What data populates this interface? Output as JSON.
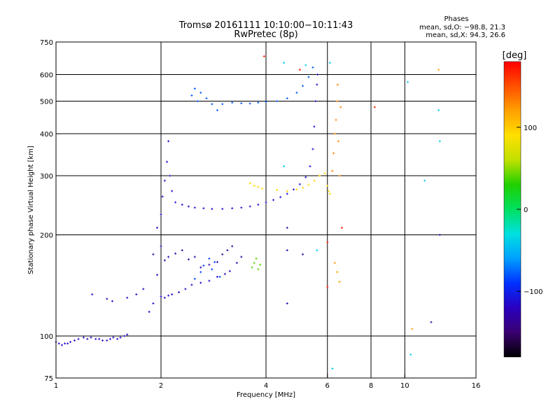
{
  "header": {
    "title_line1": "Tromsø 20161111 10:10:00−10:11:43",
    "title_line2": "RwPretec (8p)"
  },
  "stats": {
    "heading": "Phases",
    "line_o": "mean, sd,O: −98.8, 21.3",
    "line_x": "mean, sd,X:  94.3, 26.6"
  },
  "colorbar": {
    "label": "[deg]",
    "ticks": [
      {
        "value": 100,
        "label": "100"
      },
      {
        "value": 0,
        "label": "0"
      },
      {
        "value": -100,
        "label": "−100"
      }
    ],
    "range": [
      -180,
      180
    ],
    "colors": [
      "#000000",
      "#3a0070",
      "#2a00c0",
      "#0030ff",
      "#00a0ff",
      "#00e0e0",
      "#00e060",
      "#20d000",
      "#c0e000",
      "#ffe000",
      "#ffa000",
      "#ff5000",
      "#ff0000"
    ]
  },
  "chart_data": {
    "type": "scatter",
    "xlabel": "Frequency [MHz]",
    "ylabel": "Stationary phase Virtual Height [km]",
    "xscale": "log",
    "yscale": "log",
    "xlim": [
      1,
      16
    ],
    "ylim": [
      75,
      750
    ],
    "x_ticks": [
      {
        "value": 1,
        "label": "1"
      },
      {
        "value": 2,
        "label": "2"
      },
      {
        "value": 4,
        "label": "4"
      },
      {
        "value": 6,
        "label": "6"
      },
      {
        "value": 8,
        "label": "8"
      },
      {
        "value": 10,
        "label": "10"
      },
      {
        "value": 16,
        "label": "16"
      }
    ],
    "y_ticks": [
      {
        "value": 75,
        "label": "75"
      },
      {
        "value": 100,
        "label": "100"
      },
      {
        "value": 200,
        "label": "200"
      },
      {
        "value": 300,
        "label": "300"
      },
      {
        "value": 400,
        "label": "400"
      },
      {
        "value": 500,
        "label": "500"
      },
      {
        "value": 600,
        "label": "600"
      },
      {
        "value": 750,
        "label": "750"
      }
    ],
    "grid_x": [
      2,
      4,
      6,
      8,
      10
    ],
    "grid_y": [
      100,
      200,
      300,
      400,
      500,
      600
    ],
    "series": [
      {
        "color_value": -115,
        "points": [
          [
            1.0,
            96
          ],
          [
            1.02,
            95
          ],
          [
            1.04,
            94
          ],
          [
            1.06,
            95
          ],
          [
            1.08,
            95
          ],
          [
            1.1,
            96
          ],
          [
            1.13,
            97
          ],
          [
            1.16,
            98
          ],
          [
            1.2,
            99
          ],
          [
            1.23,
            98
          ],
          [
            1.26,
            99
          ],
          [
            1.3,
            98
          ],
          [
            1.33,
            98
          ],
          [
            1.36,
            97
          ],
          [
            1.4,
            97
          ],
          [
            1.43,
            98
          ],
          [
            1.46,
            99
          ],
          [
            1.5,
            98
          ],
          [
            1.53,
            99
          ],
          [
            1.57,
            100
          ],
          [
            1.6,
            101
          ]
        ]
      },
      {
        "color_value": -120,
        "points": [
          [
            1.27,
            133
          ],
          [
            1.4,
            129
          ],
          [
            1.45,
            127
          ],
          [
            1.6,
            130
          ],
          [
            1.7,
            133
          ],
          [
            1.78,
            138
          ],
          [
            1.85,
            118
          ],
          [
            1.9,
            125
          ],
          [
            1.95,
            152
          ],
          [
            2.0,
            131
          ],
          [
            2.05,
            130
          ],
          [
            2.1,
            132
          ],
          [
            2.15,
            133
          ],
          [
            2.25,
            135
          ],
          [
            2.35,
            138
          ],
          [
            2.45,
            142
          ],
          [
            2.6,
            144
          ],
          [
            2.75,
            146
          ],
          [
            2.9,
            150
          ],
          [
            3.05,
            153
          ],
          [
            3.15,
            156
          ]
        ]
      },
      {
        "color_value": -110,
        "points": [
          [
            1.95,
            210
          ],
          [
            2.0,
            230
          ],
          [
            2.02,
            260
          ],
          [
            2.05,
            290
          ],
          [
            2.08,
            330
          ],
          [
            2.1,
            380
          ],
          [
            2.12,
            300
          ],
          [
            2.15,
            270
          ],
          [
            2.2,
            250
          ],
          [
            2.3,
            246
          ],
          [
            2.4,
            243
          ],
          [
            2.5,
            241
          ],
          [
            2.65,
            240
          ],
          [
            2.8,
            239
          ],
          [
            3.0,
            239
          ],
          [
            3.2,
            240
          ],
          [
            3.4,
            241
          ],
          [
            3.6,
            243
          ],
          [
            3.8,
            246
          ],
          [
            4.0,
            250
          ],
          [
            4.2,
            254
          ],
          [
            4.4,
            259
          ],
          [
            4.6,
            265
          ],
          [
            4.8,
            273
          ],
          [
            5.0,
            283
          ],
          [
            5.2,
            297
          ],
          [
            5.35,
            320
          ],
          [
            5.45,
            360
          ],
          [
            5.5,
            420
          ],
          [
            5.55,
            500
          ],
          [
            5.6,
            560
          ],
          [
            5.62,
            600
          ]
        ]
      },
      {
        "color_value": -130,
        "points": [
          [
            1.9,
            175
          ],
          [
            2.0,
            185
          ],
          [
            2.05,
            168
          ],
          [
            2.1,
            172
          ],
          [
            2.2,
            176
          ],
          [
            2.3,
            180
          ],
          [
            2.4,
            169
          ],
          [
            2.5,
            172
          ],
          [
            2.6,
            160
          ],
          [
            2.75,
            163
          ],
          [
            2.9,
            166
          ],
          [
            3.0,
            175
          ],
          [
            3.1,
            180
          ],
          [
            3.2,
            185
          ],
          [
            3.3,
            165
          ],
          [
            3.4,
            172
          ]
        ]
      },
      {
        "color_value": -80,
        "points": [
          [
            2.45,
            520
          ],
          [
            2.5,
            545
          ],
          [
            2.55,
            500
          ],
          [
            2.6,
            530
          ],
          [
            2.7,
            510
          ],
          [
            2.8,
            490
          ],
          [
            2.9,
            470
          ],
          [
            3.0,
            490
          ],
          [
            3.2,
            495
          ],
          [
            3.4,
            493
          ],
          [
            3.6,
            492
          ],
          [
            3.8,
            495
          ],
          [
            4.0,
            498
          ],
          [
            4.3,
            500
          ],
          [
            4.6,
            510
          ],
          [
            4.9,
            530
          ],
          [
            5.1,
            555
          ],
          [
            5.3,
            590
          ],
          [
            5.45,
            630
          ]
        ]
      },
      {
        "color_value": -85,
        "points": [
          [
            2.5,
            148
          ],
          [
            2.6,
            155
          ],
          [
            2.65,
            162
          ],
          [
            2.75,
            170
          ],
          [
            2.8,
            158
          ],
          [
            2.85,
            166
          ],
          [
            2.95,
            150
          ]
        ]
      },
      {
        "color_value": 95,
        "points": [
          [
            3.6,
            285
          ],
          [
            3.7,
            280
          ],
          [
            3.8,
            278
          ],
          [
            3.9,
            275
          ],
          [
            4.3,
            272
          ],
          [
            4.6,
            270
          ],
          [
            4.9,
            273
          ],
          [
            5.1,
            276
          ],
          [
            5.3,
            282
          ],
          [
            5.5,
            290
          ],
          [
            5.7,
            300
          ],
          [
            5.9,
            305
          ],
          [
            6.0,
            280
          ],
          [
            6.05,
            270
          ],
          [
            6.1,
            265
          ]
        ]
      },
      {
        "color_value": 130,
        "points": [
          [
            6.2,
            310
          ],
          [
            6.25,
            350
          ],
          [
            6.3,
            400
          ],
          [
            6.35,
            440
          ],
          [
            6.4,
            500
          ],
          [
            6.42,
            560
          ],
          [
            6.45,
            380
          ],
          [
            6.5,
            300
          ],
          [
            6.55,
            480
          ]
        ]
      },
      {
        "color_value": 40,
        "points": [
          [
            3.65,
            160
          ],
          [
            3.7,
            165
          ],
          [
            3.75,
            170
          ],
          [
            3.8,
            158
          ],
          [
            3.85,
            163
          ]
        ]
      },
      {
        "color_value": -40,
        "points": [
          [
            4.5,
            650
          ],
          [
            4.5,
            320
          ],
          [
            5.2,
            640
          ],
          [
            5.6,
            180
          ],
          [
            6.1,
            650
          ],
          [
            10.2,
            570
          ],
          [
            10.4,
            88
          ],
          [
            11.4,
            290
          ],
          [
            12.5,
            470
          ],
          [
            12.6,
            380
          ],
          [
            6.2,
            80
          ]
        ]
      },
      {
        "color_value": 170,
        "points": [
          [
            3.95,
            680
          ],
          [
            5.0,
            620
          ],
          [
            6.6,
            210
          ],
          [
            8.2,
            480
          ],
          [
            6.0,
            190
          ],
          [
            6.0,
            140
          ]
        ]
      },
      {
        "color_value": 120,
        "points": [
          [
            6.3,
            165
          ],
          [
            6.4,
            155
          ],
          [
            6.5,
            145
          ],
          [
            12.5,
            620
          ],
          [
            10.5,
            105
          ]
        ]
      },
      {
        "color_value": -130,
        "points": [
          [
            4.6,
            210
          ],
          [
            4.6,
            180
          ],
          [
            4.6,
            125
          ],
          [
            5.1,
            175
          ],
          [
            11.9,
            110
          ],
          [
            12.6,
            200
          ]
        ]
      }
    ]
  }
}
